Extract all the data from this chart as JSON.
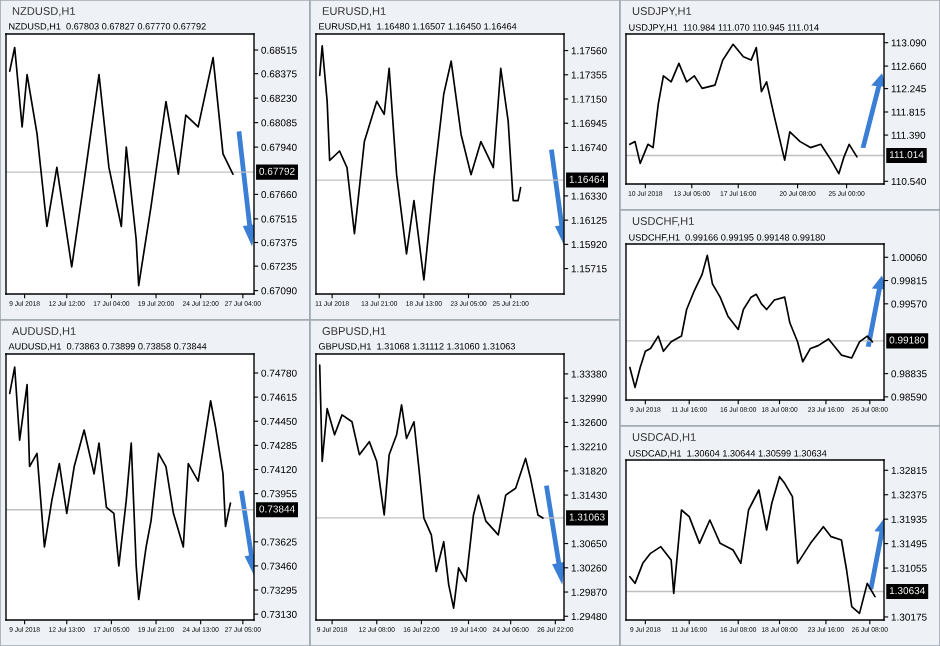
{
  "chart_data": [
    {
      "type": "line",
      "title": "NZDUSD,H1",
      "subtitle": "NZDUSD,H1  0.67803 0.67827 0.67770 0.67792",
      "categories": [
        null,
        null,
        null,
        null,
        null,
        null,
        null,
        "9 Jul 2018",
        null,
        null,
        null,
        null,
        null,
        null,
        null,
        null,
        null,
        null,
        null,
        null,
        null,
        null,
        null,
        null,
        "12 Jul 12:00",
        null,
        null,
        null,
        null,
        null,
        null,
        null,
        null,
        null,
        null,
        null,
        null,
        null,
        null,
        null,
        null,
        null,
        "17 Jul 04:00",
        null,
        null,
        null,
        null,
        null,
        null,
        null,
        null,
        null,
        null,
        null,
        null,
        null,
        null,
        null,
        null,
        null,
        "19 Jul 20:00",
        null,
        null,
        null,
        null,
        null,
        null,
        null,
        null,
        null,
        null,
        null,
        null,
        null,
        null,
        null,
        null,
        null,
        "24 Jul 12:00",
        null,
        null,
        null,
        null,
        null,
        null,
        null,
        null,
        null,
        null,
        null,
        null,
        null,
        null,
        null,
        null,
        "27 Jul 04:00",
        null,
        null,
        null,
        null
      ],
      "series": [
        {
          "color": "#000000",
          "values": [
            null,
            0.6839,
            null,
            0.6853,
            null,
            null,
            0.6806,
            null,
            0.6837,
            null,
            null,
            null,
            0.6802,
            null,
            null,
            null,
            0.6747,
            null,
            null,
            null,
            0.6782,
            null,
            null,
            null,
            null,
            null,
            0.6723,
            null,
            null,
            null,
            null,
            0.6774,
            null,
            null,
            null,
            null,
            null,
            0.6837,
            null,
            null,
            null,
            0.6782,
            null,
            null,
            null,
            null,
            0.6747,
            null,
            0.6794,
            null,
            null,
            null,
            0.6739,
            0.6712,
            null,
            null,
            null,
            null,
            0.6759,
            null,
            null,
            null,
            null,
            null,
            0.6821,
            null,
            null,
            null,
            null,
            0.6778,
            null,
            null,
            0.6813,
            null,
            null,
            null,
            null,
            0.6806,
            null,
            null,
            null,
            null,
            null,
            0.6847,
            null,
            null,
            null,
            0.679,
            null,
            null,
            null,
            0.6778,
            null,
            null,
            null,
            null,
            null,
            null,
            null,
            null
          ]
        }
      ],
      "ylim": [
        0.6707,
        0.6861
      ],
      "yticks": [
        {
          "value": 0.68515,
          "label": "0.68515"
        },
        {
          "value": 0.68375,
          "label": "0.68375"
        },
        {
          "value": 0.6823,
          "label": "0.68230"
        },
        {
          "value": 0.68085,
          "label": "0.68085"
        },
        {
          "value": 0.6794,
          "label": "0.67940"
        },
        {
          "value": 0.6766,
          "label": "0.67660"
        },
        {
          "value": 0.67515,
          "label": "0.67515"
        },
        {
          "value": 0.67375,
          "label": "0.67375"
        },
        {
          "value": 0.67235,
          "label": "0.67235"
        },
        {
          "value": 0.6709,
          "label": "0.67090"
        }
      ],
      "ref_lines": [
        {
          "axis": "y",
          "value": 0.67792,
          "label": "0.67792",
          "color": "#c0c0c0"
        }
      ]
    },
    {
      "type": "line",
      "title": "EURUSD,H1",
      "subtitle": "EURUSD,H1  1.16480 1.16507 1.16450 1.16464",
      "categories": [
        null,
        null,
        null,
        null,
        null,
        null,
        "11 Jul 2018",
        null,
        null,
        null,
        null,
        null,
        null,
        null,
        null,
        null,
        null,
        null,
        null,
        null,
        null,
        null,
        null,
        null,
        null,
        "13 Jul 21:00",
        null,
        null,
        null,
        null,
        null,
        null,
        null,
        null,
        null,
        null,
        null,
        null,
        null,
        null,
        null,
        null,
        null,
        "18 Jul 13:00",
        null,
        null,
        null,
        null,
        null,
        null,
        null,
        null,
        null,
        null,
        null,
        null,
        null,
        null,
        null,
        null,
        null,
        "23 Jul 05:00",
        null,
        null,
        null,
        null,
        null,
        null,
        null,
        null,
        null,
        null,
        null,
        null,
        null,
        null,
        null,
        null,
        "25 Jul 21:00",
        null,
        null,
        null,
        null,
        null,
        null,
        null,
        null,
        null,
        null,
        null,
        null,
        null,
        null,
        null,
        null,
        null,
        null,
        null,
        null,
        null
      ],
      "series": [
        {
          "color": "#000000",
          "values": [
            null,
            1.1735,
            1.176,
            null,
            1.1713,
            1.1663,
            null,
            null,
            null,
            1.1671,
            null,
            null,
            1.1657,
            null,
            null,
            1.1601,
            null,
            null,
            null,
            1.1679,
            null,
            null,
            null,
            null,
            1.1713,
            null,
            null,
            1.1702,
            null,
            1.1741,
            null,
            null,
            1.1651,
            null,
            null,
            null,
            1.1584,
            null,
            null,
            1.1629,
            null,
            null,
            null,
            1.1562,
            null,
            null,
            null,
            1.1646,
            null,
            null,
            null,
            1.1719,
            null,
            null,
            1.1747,
            null,
            null,
            null,
            1.1685,
            null,
            null,
            null,
            1.1651,
            null,
            null,
            null,
            1.1679,
            null,
            null,
            null,
            null,
            1.1657,
            null,
            null,
            1.1741,
            null,
            null,
            1.1696,
            null,
            1.1629,
            null,
            1.1629,
            1.164,
            null,
            null,
            null,
            null,
            null,
            null,
            null,
            null,
            null,
            null,
            null,
            null,
            null,
            null,
            null,
            null,
            null
          ]
        }
      ],
      "ylim": [
        1.155,
        1.177
      ],
      "yticks": [
        {
          "value": 1.1756,
          "label": "1.17560"
        },
        {
          "value": 1.17355,
          "label": "1.17355"
        },
        {
          "value": 1.1715,
          "label": "1.17150"
        },
        {
          "value": 1.16945,
          "label": "1.16945"
        },
        {
          "value": 1.1674,
          "label": "1.16740"
        },
        {
          "value": 1.1633,
          "label": "1.16330"
        },
        {
          "value": 1.16125,
          "label": "1.16125"
        },
        {
          "value": 1.1592,
          "label": "1.15920"
        },
        {
          "value": 1.15715,
          "label": "1.15715"
        }
      ],
      "ref_lines": [
        {
          "axis": "y",
          "value": 1.16464,
          "label": "1.16464",
          "color": "#c0c0c0"
        }
      ]
    },
    {
      "type": "line",
      "title": "USDJPY,H1",
      "subtitle": "USDJPY,H1  110.984 111.070 110.945 111.014",
      "categories": [
        null,
        null,
        null,
        null,
        null,
        null,
        null,
        "10 Jul 2018",
        null,
        null,
        null,
        null,
        null,
        null,
        null,
        null,
        null,
        null,
        null,
        null,
        null,
        null,
        null,
        null,
        null,
        "13 Jul 05:00",
        null,
        null,
        null,
        null,
        null,
        null,
        null,
        null,
        null,
        null,
        null,
        null,
        null,
        null,
        null,
        null,
        null,
        "17 Jul 16:00",
        null,
        null,
        null,
        null,
        null,
        null,
        null,
        null,
        null,
        null,
        null,
        null,
        null,
        null,
        null,
        null,
        null,
        null,
        null,
        null,
        null,
        null,
        "20 Jul 08:00",
        null,
        null,
        null,
        null,
        null,
        null,
        null,
        null,
        null,
        null,
        null,
        null,
        null,
        null,
        null,
        null,
        null,
        null,
        "25 Jul 00:00",
        null,
        null,
        null,
        null,
        null,
        null,
        null,
        null,
        null,
        null,
        null,
        null,
        null,
        null
      ],
      "series": [
        {
          "color": "#000000",
          "values": [
            null,
            111.22,
            null,
            111.27,
            null,
            110.87,
            null,
            null,
            111.22,
            null,
            111.16,
            null,
            111.96,
            null,
            112.48,
            null,
            null,
            112.37,
            null,
            null,
            112.71,
            null,
            null,
            112.37,
            null,
            null,
            112.48,
            null,
            null,
            112.25,
            null,
            null,
            null,
            null,
            112.31,
            null,
            null,
            112.77,
            null,
            null,
            null,
            113.06,
            null,
            null,
            null,
            112.83,
            null,
            null,
            112.77,
            null,
            113.0,
            null,
            112.19,
            null,
            112.37,
            null,
            null,
            111.73,
            null,
            null,
            null,
            110.93,
            null,
            111.45,
            null,
            null,
            null,
            111.27,
            null,
            null,
            null,
            111.16,
            null,
            null,
            null,
            111.22,
            null,
            null,
            null,
            110.93,
            null,
            null,
            110.68,
            null,
            110.99,
            null,
            111.22,
            null,
            null,
            110.99,
            null,
            null,
            null,
            null,
            null,
            null,
            null,
            null,
            null,
            null
          ]
        }
      ],
      "ylim": [
        110.49,
        113.25
      ],
      "yticks": [
        {
          "value": 113.09,
          "label": "113.090"
        },
        {
          "value": 112.66,
          "label": "112.660"
        },
        {
          "value": 112.245,
          "label": "112.245"
        },
        {
          "value": 111.815,
          "label": "111.815"
        },
        {
          "value": 111.39,
          "label": "111.390"
        },
        {
          "value": 110.54,
          "label": "110.540"
        }
      ],
      "ref_lines": [
        {
          "axis": "y",
          "value": 111.014,
          "label": "111.014",
          "color": "#c0c0c0"
        }
      ]
    },
    {
      "type": "line",
      "title": "AUDUSD,H1",
      "subtitle": "AUDUSD,H1  0.73863 0.73899 0.73858 0.73844",
      "categories": [
        null,
        null,
        null,
        null,
        null,
        null,
        null,
        "9 Jul 2018",
        null,
        null,
        null,
        null,
        null,
        null,
        null,
        null,
        null,
        null,
        null,
        null,
        null,
        null,
        null,
        null,
        "12 Jul 13:00",
        null,
        null,
        null,
        null,
        null,
        null,
        null,
        null,
        null,
        null,
        null,
        null,
        null,
        null,
        null,
        null,
        null,
        "17 Jul 05:00",
        null,
        null,
        null,
        null,
        null,
        null,
        null,
        null,
        null,
        null,
        null,
        null,
        null,
        null,
        null,
        null,
        null,
        "19 Jul 21:00",
        null,
        null,
        null,
        null,
        null,
        null,
        null,
        null,
        null,
        null,
        null,
        null,
        null,
        null,
        null,
        null,
        null,
        "24 Jul 13:00",
        null,
        null,
        null,
        null,
        null,
        null,
        null,
        null,
        null,
        null,
        null,
        null,
        null,
        null,
        null,
        null,
        "27 Jul 05:00",
        null,
        null,
        null,
        null
      ],
      "series": [
        {
          "color": "#000000",
          "values": [
            null,
            0.7464,
            null,
            0.7482,
            null,
            0.7432,
            null,
            null,
            0.747,
            0.7414,
            null,
            null,
            0.7423,
            null,
            null,
            0.7359,
            null,
            null,
            0.7391,
            null,
            null,
            0.7416,
            null,
            null,
            0.7382,
            null,
            null,
            0.7414,
            null,
            null,
            null,
            0.7439,
            null,
            null,
            null,
            0.7409,
            null,
            0.743,
            null,
            null,
            0.7386,
            null,
            null,
            0.7382,
            null,
            0.7346,
            null,
            null,
            0.7391,
            null,
            0.743,
            null,
            0.7346,
            0.7323,
            null,
            null,
            0.7359,
            null,
            0.7377,
            null,
            null,
            0.7423,
            null,
            null,
            0.7414,
            null,
            null,
            0.7382,
            null,
            null,
            null,
            0.7359,
            null,
            0.7416,
            null,
            null,
            null,
            0.7404,
            null,
            null,
            null,
            null,
            0.7459,
            null,
            0.7441,
            null,
            null,
            0.7409,
            0.7373,
            null,
            0.7389,
            null,
            null,
            null,
            null,
            null,
            null,
            null,
            null,
            null
          ]
        }
      ],
      "ylim": [
        0.7309,
        0.7491
      ],
      "yticks": [
        {
          "value": 0.7478,
          "label": "0.74780"
        },
        {
          "value": 0.74615,
          "label": "0.74615"
        },
        {
          "value": 0.7445,
          "label": "0.74450"
        },
        {
          "value": 0.74285,
          "label": "0.74285"
        },
        {
          "value": 0.7412,
          "label": "0.74120"
        },
        {
          "value": 0.73955,
          "label": "0.73955"
        },
        {
          "value": 0.73625,
          "label": "0.73625"
        },
        {
          "value": 0.7346,
          "label": "0.73460"
        },
        {
          "value": 0.73295,
          "label": "0.73295"
        },
        {
          "value": 0.7313,
          "label": "0.73130"
        }
      ],
      "ref_lines": [
        {
          "axis": "y",
          "value": 0.73844,
          "label": "0.73844",
          "color": "#c0c0c0"
        }
      ]
    },
    {
      "type": "line",
      "title": "GBPUSD,H1",
      "subtitle": "GBPUSD,H1  1.31068 1.31112 1.31060 1.31063",
      "categories": [
        null,
        null,
        null,
        null,
        null,
        null,
        "9 Jul 2018",
        null,
        null,
        null,
        null,
        null,
        null,
        null,
        null,
        null,
        null,
        null,
        null,
        null,
        null,
        null,
        null,
        null,
        "12 Jul 08:00",
        null,
        null,
        null,
        null,
        null,
        null,
        null,
        null,
        null,
        null,
        null,
        null,
        null,
        null,
        null,
        null,
        null,
        "16 Jul 22:00",
        null,
        null,
        null,
        null,
        null,
        null,
        null,
        null,
        null,
        null,
        null,
        null,
        null,
        null,
        null,
        null,
        null,
        null,
        "19 Jul 14:00",
        null,
        null,
        null,
        null,
        null,
        null,
        null,
        null,
        null,
        null,
        null,
        null,
        null,
        null,
        null,
        null,
        "24 Jul 06:00",
        null,
        null,
        null,
        null,
        null,
        null,
        null,
        null,
        null,
        null,
        null,
        null,
        null,
        null,
        null,
        null,
        null,
        "26 Jul 22:00",
        null,
        null,
        null
      ],
      "series": [
        {
          "color": "#000000",
          "values": [
            null,
            1.3352,
            1.3197,
            null,
            1.3282,
            null,
            null,
            1.324,
            null,
            null,
            1.3272,
            null,
            null,
            null,
            1.3261,
            null,
            null,
            1.3208,
            null,
            null,
            null,
            1.3229,
            null,
            null,
            1.3197,
            null,
            null,
            1.3111,
            null,
            1.3208,
            null,
            null,
            1.324,
            null,
            1.3288,
            null,
            1.3234,
            null,
            null,
            1.3261,
            null,
            1.3186,
            null,
            1.3106,
            null,
            null,
            1.3079,
            null,
            1.302,
            null,
            null,
            1.3068,
            null,
            1.2999,
            null,
            1.2961,
            null,
            1.3026,
            null,
            null,
            1.3004,
            null,
            null,
            1.3111,
            null,
            1.3143,
            null,
            null,
            1.3101,
            null,
            null,
            null,
            null,
            1.3079,
            null,
            null,
            1.3143,
            null,
            null,
            null,
            1.3154,
            null,
            null,
            null,
            1.3202,
            null,
            1.317,
            null,
            null,
            1.3111,
            null,
            1.3106,
            null,
            null,
            null,
            null,
            null,
            null,
            null,
            null
          ]
        }
      ],
      "ylim": [
        1.2942,
        1.337
      ],
      "yticks": [
        {
          "value": 1.3338,
          "label": "1.33380"
        },
        {
          "value": 1.3299,
          "label": "1.32990"
        },
        {
          "value": 1.326,
          "label": "1.32600"
        },
        {
          "value": 1.3221,
          "label": "1.32210"
        },
        {
          "value": 1.3182,
          "label": "1.31820"
        },
        {
          "value": 1.3143,
          "label": "1.31430"
        },
        {
          "value": 1.3065,
          "label": "1.30650"
        },
        {
          "value": 1.3026,
          "label": "1.30260"
        },
        {
          "value": 1.2987,
          "label": "1.29870"
        },
        {
          "value": 1.2948,
          "label": "1.29480"
        }
      ],
      "ref_lines": [
        {
          "axis": "y",
          "value": 1.31063,
          "label": "1.31063",
          "color": "#c0c0c0"
        }
      ]
    },
    {
      "type": "line",
      "title": "USDCHF,H1",
      "subtitle": "USDCHF,H1  0.99166 0.99195 0.99148 0.99180",
      "categories": [
        null,
        null,
        null,
        null,
        null,
        null,
        null,
        "9 Jul 2018",
        null,
        null,
        null,
        null,
        null,
        null,
        null,
        null,
        null,
        null,
        null,
        null,
        null,
        null,
        null,
        null,
        "11 Jul 16:00",
        null,
        null,
        null,
        null,
        null,
        null,
        null,
        null,
        null,
        null,
        null,
        null,
        null,
        null,
        null,
        null,
        null,
        null,
        "16 Jul 08:00",
        null,
        null,
        null,
        null,
        null,
        null,
        null,
        null,
        null,
        null,
        null,
        null,
        null,
        null,
        null,
        "18 Jul 08:00",
        null,
        null,
        null,
        null,
        null,
        null,
        null,
        null,
        null,
        null,
        null,
        null,
        null,
        null,
        null,
        null,
        null,
        "23 Jul 16:00",
        null,
        null,
        null,
        null,
        null,
        null,
        null,
        null,
        null,
        null,
        null,
        null,
        null,
        null,
        null,
        null,
        "26 Jul 08:00",
        null,
        null,
        null,
        null,
        null
      ],
      "series": [
        {
          "color": "#000000",
          "values": [
            null,
            0.989,
            null,
            0.9869,
            null,
            0.989,
            null,
            0.9907,
            null,
            0.991,
            null,
            null,
            0.9923,
            null,
            0.9907,
            null,
            null,
            0.9917,
            null,
            null,
            null,
            0.9923,
            null,
            0.9951,
            null,
            null,
            0.9971,
            null,
            null,
            0.9988,
            null,
            1.0008,
            null,
            0.9978,
            null,
            null,
            0.9964,
            null,
            null,
            0.9944,
            null,
            null,
            null,
            0.993,
            null,
            0.9951,
            null,
            null,
            0.9964,
            null,
            0.9967,
            null,
            0.9957,
            null,
            0.9951,
            null,
            null,
            0.9961,
            null,
            null,
            null,
            0.9964,
            null,
            0.9937,
            null,
            null,
            0.9917,
            null,
            0.9896,
            null,
            null,
            0.991,
            null,
            null,
            0.9913,
            null,
            null,
            null,
            0.992,
            null,
            null,
            null,
            null,
            0.9903,
            null,
            null,
            null,
            0.99,
            null,
            null,
            0.9917,
            null,
            null,
            0.9923,
            null,
            0.9917,
            null,
            null,
            null,
            null
          ]
        }
      ],
      "ylim": [
        0.98557,
        1.002
      ],
      "yticks": [
        {
          "value": 1.0006,
          "label": "1.00060"
        },
        {
          "value": 0.99815,
          "label": "0.99815"
        },
        {
          "value": 0.9957,
          "label": "0.99570"
        },
        {
          "value": 0.98835,
          "label": "0.98835"
        },
        {
          "value": 0.9859,
          "label": "0.98590"
        }
      ],
      "ref_lines": [
        {
          "axis": "y",
          "value": 0.9918,
          "label": "0.99180",
          "color": "#c0c0c0"
        }
      ]
    },
    {
      "type": "line",
      "title": "USDCAD,H1",
      "subtitle": "USDCAD,H1  1.30604 1.30644 1.30599 1.30634",
      "categories": [
        null,
        null,
        null,
        null,
        null,
        null,
        null,
        "9 Jul 2018",
        null,
        null,
        null,
        null,
        null,
        null,
        null,
        null,
        null,
        null,
        null,
        null,
        null,
        null,
        null,
        null,
        "11 Jul 16:00",
        null,
        null,
        null,
        null,
        null,
        null,
        null,
        null,
        null,
        null,
        null,
        null,
        null,
        null,
        null,
        null,
        null,
        null,
        "16 Jul 08:00",
        null,
        null,
        null,
        null,
        null,
        null,
        null,
        null,
        null,
        null,
        null,
        null,
        null,
        null,
        null,
        "18 Jul 08:00",
        null,
        null,
        null,
        null,
        null,
        null,
        null,
        null,
        null,
        null,
        null,
        null,
        null,
        null,
        null,
        null,
        null,
        "23 Jul 16:00",
        null,
        null,
        null,
        null,
        null,
        null,
        null,
        null,
        null,
        null,
        null,
        null,
        null,
        null,
        null,
        null,
        "26 Jul 08:00",
        null,
        null,
        null,
        null,
        null
      ],
      "series": [
        {
          "color": "#000000",
          "values": [
            null,
            1.309,
            null,
            1.3078,
            null,
            null,
            1.3114,
            null,
            null,
            1.3132,
            null,
            null,
            null,
            1.3144,
            null,
            null,
            null,
            1.312,
            1.306,
            null,
            null,
            1.321,
            null,
            null,
            1.3198,
            null,
            null,
            null,
            1.315,
            null,
            null,
            null,
            1.3192,
            null,
            null,
            null,
            1.315,
            null,
            null,
            null,
            null,
            1.3138,
            null,
            null,
            1.3114,
            null,
            null,
            1.321,
            null,
            null,
            null,
            1.3246,
            null,
            null,
            1.3174,
            null,
            1.3222,
            null,
            null,
            1.327,
            null,
            1.3258,
            null,
            null,
            1.3234,
            null,
            1.3114,
            null,
            null,
            null,
            null,
            1.315,
            null,
            null,
            null,
            null,
            1.318,
            null,
            null,
            1.3162,
            null,
            null,
            null,
            1.3156,
            null,
            1.3102,
            null,
            1.3036,
            null,
            null,
            1.3024,
            null,
            null,
            1.3078,
            null,
            null,
            1.3054,
            null,
            null,
            null
          ]
        }
      ],
      "ylim": [
        1.3012,
        1.33
      ],
      "yticks": [
        {
          "value": 1.32815,
          "label": "1.32815"
        },
        {
          "value": 1.32375,
          "label": "1.32375"
        },
        {
          "value": 1.31935,
          "label": "1.31935"
        },
        {
          "value": 1.31495,
          "label": "1.31495"
        },
        {
          "value": 1.31055,
          "label": "1.31055"
        },
        {
          "value": 1.30175,
          "label": "1.30175"
        }
      ],
      "ref_lines": [
        {
          "axis": "y",
          "value": 1.30634,
          "label": "1.30634",
          "color": "#c0c0c0"
        }
      ]
    }
  ]
}
